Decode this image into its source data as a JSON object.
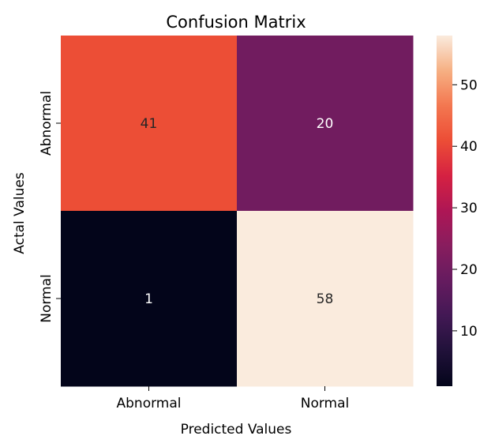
{
  "chart_data": {
    "type": "heatmap",
    "title": "Confusion Matrix",
    "xlabel": "Predicted Values",
    "ylabel": "Actal Values",
    "x_categories": [
      "Abnormal",
      "Normal"
    ],
    "y_categories": [
      "Abnormal",
      "Normal"
    ],
    "values": [
      [
        41,
        20
      ],
      [
        1,
        58
      ]
    ],
    "colormap": "rocket",
    "colorbar": {
      "range": [
        1,
        58
      ],
      "ticks": [
        10,
        20,
        30,
        40,
        50
      ],
      "tick_labels": [
        "10",
        "20",
        "30",
        "40",
        "50"
      ]
    },
    "annotation_colors": {
      "light": "#ffffff",
      "dark": "#262626"
    },
    "grid": false
  }
}
